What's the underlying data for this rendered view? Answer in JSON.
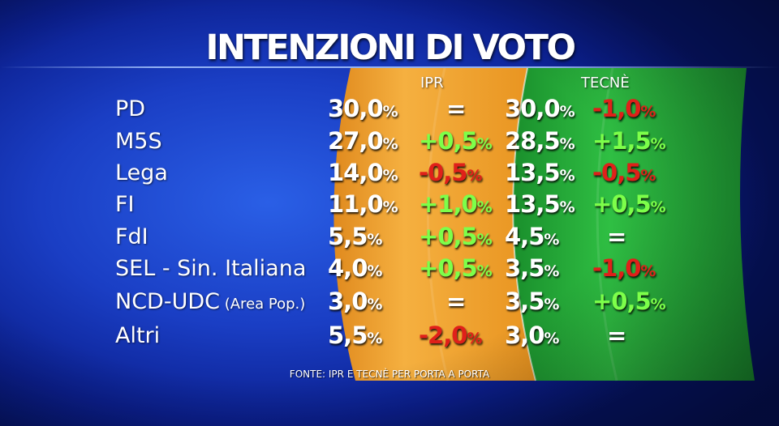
{
  "title": "INTENZIONI DI VOTO",
  "source": "FONTE: IPR E TECNÈ PER PORTA A PORTA",
  "colors": {
    "background": "#1a3ec4",
    "ipr_band": "#f0a030",
    "tecne_band": "#1fa83a",
    "positive": "#7dff4a",
    "negative": "#e0201a"
  },
  "chart_data": {
    "type": "table",
    "title": "INTENZIONI DI VOTO",
    "columns": [
      "IPR",
      "TECNÈ"
    ],
    "rows": [
      {
        "party": "PD",
        "sub": "",
        "ipr": "30,0",
        "ipr_delta": "=",
        "tecne": "30,0",
        "tecne_delta": "-1,0"
      },
      {
        "party": "M5S",
        "sub": "",
        "ipr": "27,0",
        "ipr_delta": "+0,5",
        "tecne": "28,5",
        "tecne_delta": "+1,5"
      },
      {
        "party": "Lega",
        "sub": "",
        "ipr": "14,0",
        "ipr_delta": "-0,5",
        "tecne": "13,5",
        "tecne_delta": "-0,5"
      },
      {
        "party": "FI",
        "sub": "",
        "ipr": "11,0",
        "ipr_delta": "+1,0",
        "tecne": "13,5",
        "tecne_delta": "+0,5"
      },
      {
        "party": "FdI",
        "sub": "",
        "ipr": "5,5",
        "ipr_delta": "+0,5",
        "tecne": "4,5",
        "tecne_delta": "="
      },
      {
        "party": "SEL - Sin. Italiana",
        "sub": "",
        "ipr": "4,0",
        "ipr_delta": "+0,5",
        "tecne": "3,5",
        "tecne_delta": "-1,0"
      },
      {
        "party": "NCD-UDC",
        "sub": "(Area Pop.)",
        "ipr": "3,0",
        "ipr_delta": "=",
        "tecne": "3,5",
        "tecne_delta": "+0,5"
      },
      {
        "party": "Altri",
        "sub": "",
        "ipr": "5,5",
        "ipr_delta": "-2,0",
        "tecne": "3,0",
        "tecne_delta": "="
      }
    ],
    "unit": "%"
  }
}
